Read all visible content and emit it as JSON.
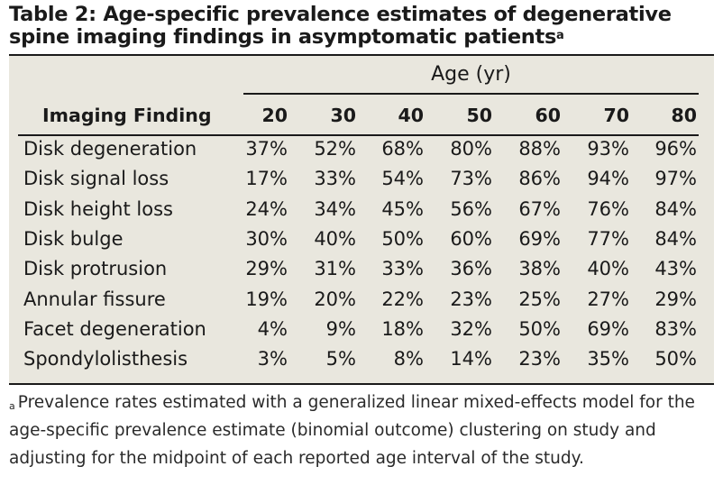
{
  "title": {
    "text": "Table 2: Age-specific prevalence estimates of degenerative spine imaging findings in asymptomatic patients",
    "superscript": "a"
  },
  "table": {
    "group_header": "Age (yr)",
    "finding_header": "Imaging Finding",
    "ages": [
      "20",
      "30",
      "40",
      "50",
      "60",
      "70",
      "80"
    ],
    "rows": [
      {
        "finding": "Disk degeneration",
        "values": [
          "37%",
          "52%",
          "68%",
          "80%",
          "88%",
          "93%",
          "96%"
        ]
      },
      {
        "finding": "Disk signal loss",
        "values": [
          "17%",
          "33%",
          "54%",
          "73%",
          "86%",
          "94%",
          "97%"
        ]
      },
      {
        "finding": "Disk height loss",
        "values": [
          "24%",
          "34%",
          "45%",
          "56%",
          "67%",
          "76%",
          "84%"
        ]
      },
      {
        "finding": "Disk bulge",
        "values": [
          "30%",
          "40%",
          "50%",
          "60%",
          "69%",
          "77%",
          "84%"
        ]
      },
      {
        "finding": "Disk protrusion",
        "values": [
          "29%",
          "31%",
          "33%",
          "36%",
          "38%",
          "40%",
          "43%"
        ]
      },
      {
        "finding": "Annular fissure",
        "values": [
          "19%",
          "20%",
          "22%",
          "23%",
          "25%",
          "27%",
          "29%"
        ]
      },
      {
        "finding": "Facet degeneration",
        "values": [
          "4%",
          "9%",
          "18%",
          "32%",
          "50%",
          "69%",
          "83%"
        ]
      },
      {
        "finding": "Spondylolisthesis",
        "values": [
          "3%",
          "5%",
          "8%",
          "14%",
          "23%",
          "35%",
          "50%"
        ]
      }
    ]
  },
  "footnote": {
    "marker": "a",
    "text": "Prevalence rates estimated with a generalized linear mixed-effects model for the age-specific prevalence estimate (binomial outcome) clustering on study and adjusting for the midpoint of each reported age interval of the study."
  }
}
